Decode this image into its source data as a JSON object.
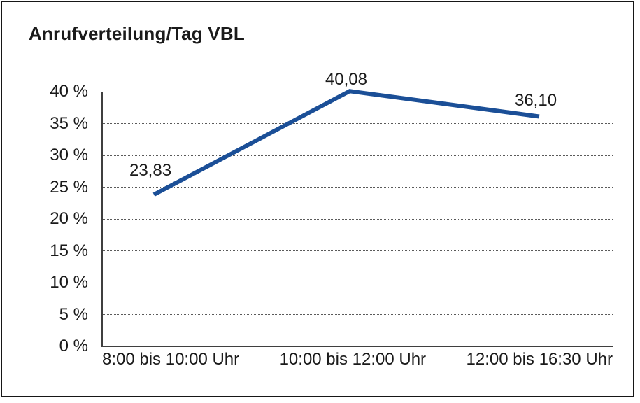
{
  "frame": {
    "background": "#ffffff",
    "border_color": "#161616"
  },
  "chart_data": {
    "type": "line",
    "title": "Anrufverteilung/Tag VBL",
    "categories": [
      "8:00 bis 10:00 Uhr",
      "10:00 bis 12:00 Uhr",
      "12:00 bis 16:30 Uhr"
    ],
    "series": [
      {
        "values": [
          23.83,
          40.08,
          36.1
        ],
        "data_labels": [
          "23,83",
          "40,08",
          "36,10"
        ],
        "color": "#1b4f97"
      }
    ],
    "xlabel": "",
    "ylabel": "",
    "ylim": [
      0,
      40
    ],
    "y_ticks": [
      {
        "value": 0,
        "label": "0 %"
      },
      {
        "value": 5,
        "label": "5 %"
      },
      {
        "value": 10,
        "label": "10 %"
      },
      {
        "value": 15,
        "label": "15 %"
      },
      {
        "value": 20,
        "label": "20 %"
      },
      {
        "value": 25,
        "label": "25 %"
      },
      {
        "value": 30,
        "label": "30 %"
      },
      {
        "value": 35,
        "label": "35 %"
      },
      {
        "value": 40,
        "label": "40 %"
      }
    ],
    "grid": {
      "horizontal": true,
      "style": "dotted",
      "color": "#5a5a5a"
    },
    "axis_color": "#3f3f3f",
    "text_color": "#1a1a1a",
    "legend": "none",
    "markers": "none",
    "background": "#ffffff"
  }
}
